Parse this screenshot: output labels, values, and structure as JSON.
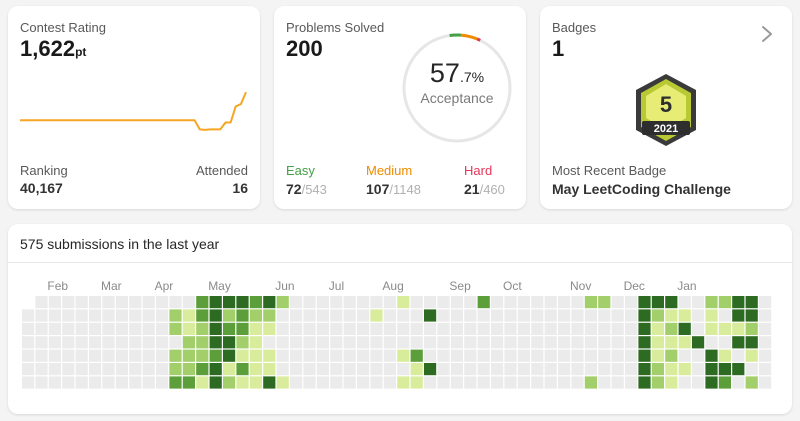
{
  "rating": {
    "label": "Contest Rating",
    "value": "1,622",
    "unit": "pt",
    "trend": [
      1500,
      1500,
      1500,
      1500,
      1500,
      1500,
      1500,
      1500,
      1500,
      1500,
      1500,
      1500,
      1500,
      1500,
      1500,
      1500,
      1500,
      1500,
      1500,
      1500,
      1500,
      1500,
      1500,
      1500,
      1500,
      1500,
      1500,
      1500,
      1500,
      1500,
      1500,
      1500,
      1500,
      1500,
      1500,
      1460,
      1458,
      1460,
      1460,
      1460,
      1490,
      1490,
      1560,
      1570,
      1622
    ],
    "ranking_label": "Ranking",
    "ranking_value": "40,167",
    "attended_label": "Attended",
    "attended_value": "16",
    "line_color": "#f5a623"
  },
  "solved": {
    "label": "Problems Solved",
    "value": "200",
    "acceptance_main": "57",
    "acceptance_decimal": ".7%",
    "acceptance_label": "Acceptance",
    "acceptance_fraction": 0.577,
    "easy": {
      "label": "Easy",
      "solved": "72",
      "total": "/543",
      "color": "#43a047"
    },
    "medium": {
      "label": "Medium",
      "solved": "107",
      "total": "/1148",
      "color": "#ef8c00"
    },
    "hard": {
      "label": "Hard",
      "solved": "21",
      "total": "/460",
      "color": "#e5375a"
    }
  },
  "badges": {
    "label": "Badges",
    "value": "1",
    "badge_number": "5",
    "badge_year": "2021",
    "recent_label": "Most Recent Badge",
    "recent_value": "May LeetCoding Challenge"
  },
  "heatmap": {
    "title": "575 submissions in the last year",
    "months": [
      {
        "label": "Feb",
        "week": 1
      },
      {
        "label": "Mar",
        "week": 5
      },
      {
        "label": "Apr",
        "week": 9
      },
      {
        "label": "May",
        "week": 13
      },
      {
        "label": "Jun",
        "week": 18
      },
      {
        "label": "Jul",
        "week": 22
      },
      {
        "label": "Aug",
        "week": 26
      },
      {
        "label": "Sep",
        "week": 31
      },
      {
        "label": "Oct",
        "week": 35
      },
      {
        "label": "Nov",
        "week": 40
      },
      {
        "label": "Dec",
        "week": 44
      },
      {
        "label": "Jan",
        "week": 48
      }
    ],
    "num_weeks": 53,
    "colors": [
      "#ebebeb",
      "#d9ec9b",
      "#a3cf6b",
      "#5c9e3a",
      "#2d6a22"
    ],
    "cells": [
      [
        11,
        1,
        2
      ],
      [
        11,
        2,
        2
      ],
      [
        11,
        4,
        2
      ],
      [
        11,
        5,
        2
      ],
      [
        11,
        6,
        3
      ],
      [
        12,
        1,
        1
      ],
      [
        12,
        2,
        1
      ],
      [
        12,
        3,
        2
      ],
      [
        12,
        4,
        2
      ],
      [
        12,
        5,
        2
      ],
      [
        12,
        6,
        3
      ],
      [
        13,
        0,
        3
      ],
      [
        13,
        1,
        3
      ],
      [
        13,
        2,
        2
      ],
      [
        13,
        3,
        2
      ],
      [
        13,
        4,
        2
      ],
      [
        13,
        5,
        3
      ],
      [
        13,
        6,
        1
      ],
      [
        14,
        0,
        4
      ],
      [
        14,
        1,
        4
      ],
      [
        14,
        2,
        4
      ],
      [
        14,
        3,
        4
      ],
      [
        14,
        4,
        3
      ],
      [
        14,
        5,
        4
      ],
      [
        14,
        6,
        4
      ],
      [
        15,
        0,
        4
      ],
      [
        15,
        1,
        2
      ],
      [
        15,
        2,
        3
      ],
      [
        15,
        3,
        4
      ],
      [
        15,
        4,
        4
      ],
      [
        15,
        5,
        1
      ],
      [
        15,
        6,
        2
      ],
      [
        16,
        0,
        4
      ],
      [
        16,
        1,
        3
      ],
      [
        16,
        2,
        3
      ],
      [
        16,
        3,
        2
      ],
      [
        16,
        4,
        1
      ],
      [
        16,
        5,
        3
      ],
      [
        16,
        6,
        1
      ],
      [
        17,
        0,
        3
      ],
      [
        17,
        1,
        2
      ],
      [
        17,
        2,
        1
      ],
      [
        17,
        3,
        1
      ],
      [
        17,
        4,
        1
      ],
      [
        17,
        5,
        1
      ],
      [
        17,
        6,
        1
      ],
      [
        18,
        0,
        4
      ],
      [
        18,
        1,
        2
      ],
      [
        18,
        2,
        1
      ],
      [
        18,
        4,
        1
      ],
      [
        18,
        5,
        1
      ],
      [
        18,
        6,
        4
      ],
      [
        19,
        0,
        2
      ],
      [
        19,
        6,
        1
      ],
      [
        26,
        1,
        1
      ],
      [
        28,
        0,
        1
      ],
      [
        28,
        4,
        1
      ],
      [
        28,
        6,
        1
      ],
      [
        29,
        4,
        3
      ],
      [
        29,
        5,
        1
      ],
      [
        29,
        6,
        1
      ],
      [
        30,
        1,
        4
      ],
      [
        30,
        5,
        4
      ],
      [
        34,
        0,
        3
      ],
      [
        42,
        0,
        2
      ],
      [
        42,
        6,
        2
      ],
      [
        43,
        0,
        2
      ],
      [
        46,
        0,
        4
      ],
      [
        46,
        1,
        4
      ],
      [
        46,
        2,
        4
      ],
      [
        46,
        3,
        4
      ],
      [
        46,
        4,
        4
      ],
      [
        46,
        5,
        4
      ],
      [
        46,
        6,
        4
      ],
      [
        47,
        0,
        4
      ],
      [
        47,
        1,
        2
      ],
      [
        47,
        2,
        1
      ],
      [
        47,
        3,
        1
      ],
      [
        47,
        4,
        1
      ],
      [
        47,
        5,
        2
      ],
      [
        47,
        6,
        2
      ],
      [
        48,
        0,
        4
      ],
      [
        48,
        1,
        1
      ],
      [
        48,
        2,
        2
      ],
      [
        48,
        3,
        1
      ],
      [
        48,
        4,
        2
      ],
      [
        48,
        5,
        1
      ],
      [
        48,
        6,
        1
      ],
      [
        49,
        1,
        1
      ],
      [
        49,
        2,
        4
      ],
      [
        49,
        3,
        1
      ],
      [
        49,
        5,
        1
      ],
      [
        50,
        3,
        4
      ],
      [
        51,
        0,
        2
      ],
      [
        51,
        1,
        1
      ],
      [
        51,
        2,
        1
      ],
      [
        51,
        4,
        4
      ],
      [
        51,
        5,
        4
      ],
      [
        51,
        6,
        4
      ],
      [
        52,
        0,
        2
      ],
      [
        52,
        2,
        1
      ],
      [
        52,
        4,
        1
      ],
      [
        52,
        5,
        4
      ],
      [
        52,
        6,
        3
      ],
      [
        53,
        0,
        4
      ],
      [
        53,
        1,
        4
      ],
      [
        53,
        2,
        1
      ],
      [
        53,
        3,
        4
      ],
      [
        53,
        5,
        4
      ],
      [
        54,
        0,
        4
      ],
      [
        54,
        1,
        4
      ],
      [
        54,
        2,
        2
      ],
      [
        54,
        3,
        4
      ],
      [
        54,
        4,
        1
      ],
      [
        54,
        6,
        2
      ]
    ]
  }
}
